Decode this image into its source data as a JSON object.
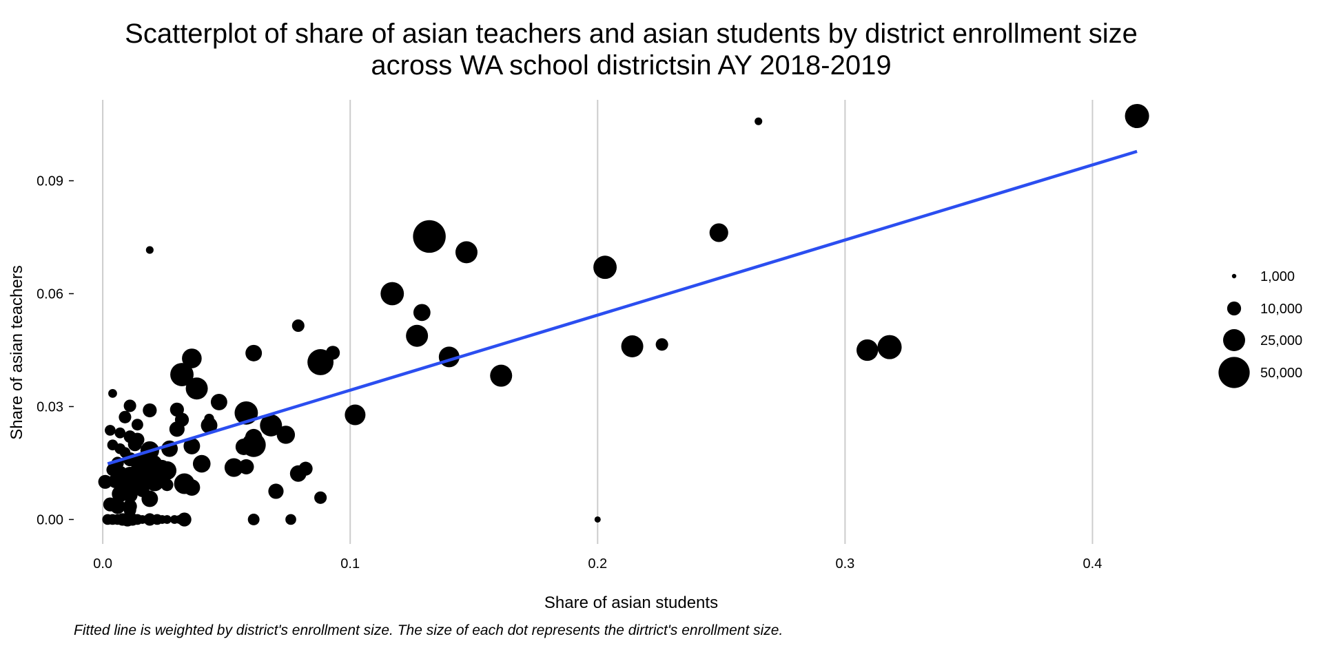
{
  "chart_data": {
    "type": "scatter",
    "title": [
      "Scatterplot of share of asian teachers and asian students by district enrollment size",
      "across WA school districtsin AY 2018-2019"
    ],
    "xlabel": "Share of asian students",
    "ylabel": "Share of asian teachers",
    "caption": "Fitted line is weighted by district's enrollment size. The size of each dot represents the dirtrict's enrollment size.",
    "xlim": [
      -0.0095,
      0.45
    ],
    "ylim": [
      -0.0065,
      0.1115
    ],
    "xticks": [
      0.0,
      0.1,
      0.2,
      0.3,
      0.4
    ],
    "xtick_labels": [
      "0.0",
      "0.1",
      "0.2",
      "0.3",
      "0.4"
    ],
    "yticks": [
      0.0,
      0.03,
      0.06,
      0.09
    ],
    "ytick_labels": [
      "0.00",
      "0.03",
      "0.06",
      "0.09"
    ],
    "grid": "vertical major lines",
    "point_color": "#000000",
    "line_color": "#2b4ef0",
    "grid_color": "#cccccc",
    "fitted_line": {
      "x": [
        0.002,
        0.418
      ],
      "y": [
        0.0148,
        0.0978
      ]
    },
    "size_legend": {
      "position": "right",
      "entries": [
        {
          "label": "1,000",
          "enrollment": 1000
        },
        {
          "label": "10,000",
          "enrollment": 10000
        },
        {
          "label": "25,000",
          "enrollment": 25000
        },
        {
          "label": "50,000",
          "enrollment": 50000
        }
      ]
    },
    "points": [
      {
        "x": 0.418,
        "y": 0.1072,
        "enrollment": 30000
      },
      {
        "x": 0.265,
        "y": 0.1058,
        "enrollment": 3000
      },
      {
        "x": 0.249,
        "y": 0.0762,
        "enrollment": 18000
      },
      {
        "x": 0.203,
        "y": 0.067,
        "enrollment": 28000
      },
      {
        "x": 0.214,
        "y": 0.046,
        "enrollment": 25000
      },
      {
        "x": 0.226,
        "y": 0.0465,
        "enrollment": 8000
      },
      {
        "x": 0.309,
        "y": 0.045,
        "enrollment": 24000
      },
      {
        "x": 0.318,
        "y": 0.0458,
        "enrollment": 30000
      },
      {
        "x": 0.161,
        "y": 0.0382,
        "enrollment": 25000
      },
      {
        "x": 0.132,
        "y": 0.0752,
        "enrollment": 55000
      },
      {
        "x": 0.147,
        "y": 0.071,
        "enrollment": 25000
      },
      {
        "x": 0.117,
        "y": 0.06,
        "enrollment": 28000
      },
      {
        "x": 0.129,
        "y": 0.055,
        "enrollment": 15000
      },
      {
        "x": 0.127,
        "y": 0.0488,
        "enrollment": 25000
      },
      {
        "x": 0.14,
        "y": 0.0432,
        "enrollment": 22000
      },
      {
        "x": 0.102,
        "y": 0.0278,
        "enrollment": 22000
      },
      {
        "x": 0.088,
        "y": 0.0418,
        "enrollment": 35000
      },
      {
        "x": 0.093,
        "y": 0.0443,
        "enrollment": 10000
      },
      {
        "x": 0.079,
        "y": 0.0515,
        "enrollment": 8000
      },
      {
        "x": 0.061,
        "y": 0.0442,
        "enrollment": 14000
      },
      {
        "x": 0.036,
        "y": 0.0428,
        "enrollment": 20000
      },
      {
        "x": 0.032,
        "y": 0.0385,
        "enrollment": 28000
      },
      {
        "x": 0.038,
        "y": 0.0348,
        "enrollment": 25000
      },
      {
        "x": 0.047,
        "y": 0.0312,
        "enrollment": 14000
      },
      {
        "x": 0.058,
        "y": 0.0283,
        "enrollment": 28000
      },
      {
        "x": 0.068,
        "y": 0.025,
        "enrollment": 25000
      },
      {
        "x": 0.074,
        "y": 0.0225,
        "enrollment": 17000
      },
      {
        "x": 0.061,
        "y": 0.0218,
        "enrollment": 15000
      },
      {
        "x": 0.061,
        "y": 0.0198,
        "enrollment": 30000
      },
      {
        "x": 0.057,
        "y": 0.0193,
        "enrollment": 14000
      },
      {
        "x": 0.043,
        "y": 0.025,
        "enrollment": 14000
      },
      {
        "x": 0.043,
        "y": 0.0268,
        "enrollment": 5000
      },
      {
        "x": 0.032,
        "y": 0.0265,
        "enrollment": 10000
      },
      {
        "x": 0.03,
        "y": 0.0292,
        "enrollment": 10000
      },
      {
        "x": 0.03,
        "y": 0.024,
        "enrollment": 12000
      },
      {
        "x": 0.036,
        "y": 0.0195,
        "enrollment": 14000
      },
      {
        "x": 0.04,
        "y": 0.0148,
        "enrollment": 16000
      },
      {
        "x": 0.053,
        "y": 0.0138,
        "enrollment": 18000
      },
      {
        "x": 0.058,
        "y": 0.014,
        "enrollment": 12000
      },
      {
        "x": 0.082,
        "y": 0.0135,
        "enrollment": 10000
      },
      {
        "x": 0.079,
        "y": 0.0122,
        "enrollment": 14000
      },
      {
        "x": 0.07,
        "y": 0.0075,
        "enrollment": 12000
      },
      {
        "x": 0.088,
        "y": 0.0058,
        "enrollment": 8000
      },
      {
        "x": 0.061,
        "y": 0.0,
        "enrollment": 7000
      },
      {
        "x": 0.076,
        "y": 0.0,
        "enrollment": 6000
      },
      {
        "x": 0.2,
        "y": 0.0,
        "enrollment": 2000
      },
      {
        "x": 0.019,
        "y": 0.0716,
        "enrollment": 3000
      },
      {
        "x": 0.004,
        "y": 0.0335,
        "enrollment": 4000
      },
      {
        "x": 0.011,
        "y": 0.0302,
        "enrollment": 8000
      },
      {
        "x": 0.019,
        "y": 0.029,
        "enrollment": 10000
      },
      {
        "x": 0.009,
        "y": 0.0272,
        "enrollment": 8000
      },
      {
        "x": 0.014,
        "y": 0.0252,
        "enrollment": 7000
      },
      {
        "x": 0.003,
        "y": 0.0237,
        "enrollment": 6000
      },
      {
        "x": 0.007,
        "y": 0.023,
        "enrollment": 6000
      },
      {
        "x": 0.011,
        "y": 0.022,
        "enrollment": 8000
      },
      {
        "x": 0.014,
        "y": 0.0212,
        "enrollment": 10000
      },
      {
        "x": 0.004,
        "y": 0.0198,
        "enrollment": 6000
      },
      {
        "x": 0.013,
        "y": 0.02,
        "enrollment": 10000
      },
      {
        "x": 0.007,
        "y": 0.0188,
        "enrollment": 6000
      },
      {
        "x": 0.009,
        "y": 0.0178,
        "enrollment": 6000
      },
      {
        "x": 0.019,
        "y": 0.0183,
        "enrollment": 18000
      },
      {
        "x": 0.027,
        "y": 0.0188,
        "enrollment": 14000
      },
      {
        "x": 0.011,
        "y": 0.016,
        "enrollment": 10000
      },
      {
        "x": 0.015,
        "y": 0.0155,
        "enrollment": 12000
      },
      {
        "x": 0.006,
        "y": 0.015,
        "enrollment": 8000
      },
      {
        "x": 0.02,
        "y": 0.0145,
        "enrollment": 22000
      },
      {
        "x": 0.024,
        "y": 0.014,
        "enrollment": 10000
      },
      {
        "x": 0.004,
        "y": 0.0132,
        "enrollment": 8000
      },
      {
        "x": 0.015,
        "y": 0.0128,
        "enrollment": 20000
      },
      {
        "x": 0.026,
        "y": 0.013,
        "enrollment": 18000
      },
      {
        "x": 0.007,
        "y": 0.0122,
        "enrollment": 12000
      },
      {
        "x": 0.011,
        "y": 0.0118,
        "enrollment": 14000
      },
      {
        "x": 0.018,
        "y": 0.0115,
        "enrollment": 25000
      },
      {
        "x": 0.024,
        "y": 0.0112,
        "enrollment": 12000
      },
      {
        "x": 0.001,
        "y": 0.01,
        "enrollment": 10000
      },
      {
        "x": 0.005,
        "y": 0.0102,
        "enrollment": 10000
      },
      {
        "x": 0.009,
        "y": 0.01,
        "enrollment": 14000
      },
      {
        "x": 0.014,
        "y": 0.0105,
        "enrollment": 25000
      },
      {
        "x": 0.021,
        "y": 0.01,
        "enrollment": 18000
      },
      {
        "x": 0.026,
        "y": 0.0092,
        "enrollment": 8000
      },
      {
        "x": 0.033,
        "y": 0.0095,
        "enrollment": 22000
      },
      {
        "x": 0.036,
        "y": 0.0085,
        "enrollment": 14000
      },
      {
        "x": 0.008,
        "y": 0.0085,
        "enrollment": 10000
      },
      {
        "x": 0.012,
        "y": 0.008,
        "enrollment": 12000
      },
      {
        "x": 0.016,
        "y": 0.0078,
        "enrollment": 10000
      },
      {
        "x": 0.007,
        "y": 0.0068,
        "enrollment": 14000
      },
      {
        "x": 0.011,
        "y": 0.0065,
        "enrollment": 12000
      },
      {
        "x": 0.019,
        "y": 0.0055,
        "enrollment": 14000
      },
      {
        "x": 0.003,
        "y": 0.004,
        "enrollment": 10000
      },
      {
        "x": 0.006,
        "y": 0.0035,
        "enrollment": 12000
      },
      {
        "x": 0.011,
        "y": 0.0035,
        "enrollment": 10000
      },
      {
        "x": 0.011,
        "y": 0.0025,
        "enrollment": 8000
      },
      {
        "x": 0.002,
        "y": 0.0,
        "enrollment": 6000
      },
      {
        "x": 0.004,
        "y": 0.0,
        "enrollment": 6000
      },
      {
        "x": 0.006,
        "y": 0.0,
        "enrollment": 6000
      },
      {
        "x": 0.008,
        "y": 0.0,
        "enrollment": 8000
      },
      {
        "x": 0.01,
        "y": 0.0,
        "enrollment": 10000
      },
      {
        "x": 0.012,
        "y": 0.0,
        "enrollment": 8000
      },
      {
        "x": 0.014,
        "y": 0.0,
        "enrollment": 6000
      },
      {
        "x": 0.016,
        "y": 0.0,
        "enrollment": 4000
      },
      {
        "x": 0.019,
        "y": 0.0,
        "enrollment": 8000
      },
      {
        "x": 0.022,
        "y": 0.0,
        "enrollment": 6000
      },
      {
        "x": 0.024,
        "y": 0.0,
        "enrollment": 4000
      },
      {
        "x": 0.026,
        "y": 0.0,
        "enrollment": 4000
      },
      {
        "x": 0.029,
        "y": 0.0,
        "enrollment": 4000
      },
      {
        "x": 0.031,
        "y": 0.0,
        "enrollment": 4000
      },
      {
        "x": 0.033,
        "y": 0.0,
        "enrollment": 10000
      }
    ]
  }
}
